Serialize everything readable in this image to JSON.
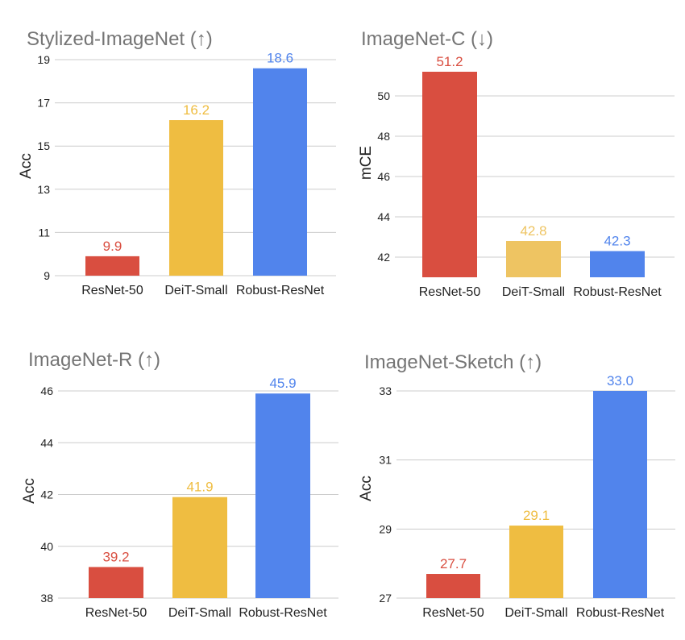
{
  "chart_data": [
    {
      "type": "bar",
      "title": "Stylized-ImageNet  (↑)",
      "ylabel": "Acc",
      "xlabel": "",
      "categories": [
        "ResNet-50",
        "DeiT-Small",
        "Robust-ResNet"
      ],
      "values": [
        9.9,
        16.2,
        18.6
      ],
      "value_labels": [
        "9.9",
        "16.2",
        "18.6"
      ],
      "colors": [
        "#d94e40",
        "#efbd41",
        "#5184ec"
      ],
      "ylim": [
        9,
        19
      ],
      "yticks": [
        9,
        11,
        13,
        15,
        17,
        19
      ],
      "ytick_labels": [
        "9",
        "11",
        "13",
        "15",
        "17",
        "19"
      ],
      "grid": true
    },
    {
      "type": "bar",
      "title": "ImageNet-C (↓)",
      "ylabel": "mCE",
      "xlabel": "",
      "categories": [
        "ResNet-50",
        "DeiT-Small",
        "Robust-ResNet"
      ],
      "values": [
        51.2,
        42.8,
        42.3
      ],
      "value_labels": [
        "51.2",
        "42.8",
        "42.3"
      ],
      "colors": [
        "#d94e40",
        "#eec462",
        "#5184ec"
      ],
      "ylim": [
        41,
        52
      ],
      "yticks": [
        42,
        44,
        46,
        48,
        50
      ],
      "ytick_labels": [
        "42",
        "44",
        "46",
        "48",
        "50"
      ],
      "grid": true
    },
    {
      "type": "bar",
      "title": "ImageNet-R (↑)",
      "ylabel": "Acc",
      "xlabel": "",
      "categories": [
        "ResNet-50",
        "DeiT-Small",
        "Robust-ResNet"
      ],
      "values": [
        39.2,
        41.9,
        45.9
      ],
      "value_labels": [
        "39.2",
        "41.9",
        "45.9"
      ],
      "colors": [
        "#d94e40",
        "#efbd41",
        "#5184ec"
      ],
      "ylim": [
        38,
        46
      ],
      "yticks": [
        38,
        40,
        42,
        44,
        46
      ],
      "ytick_labels": [
        "38",
        "40",
        "42",
        "44",
        "46"
      ],
      "grid": true
    },
    {
      "type": "bar",
      "title": "ImageNet-Sketch (↑)",
      "ylabel": "Acc",
      "xlabel": "",
      "categories": [
        "ResNet-50",
        "DeiT-Small",
        "Robust-ResNet"
      ],
      "values": [
        27.7,
        29.1,
        33.0
      ],
      "value_labels": [
        "27.7",
        "29.1",
        "33.0"
      ],
      "colors": [
        "#d94e40",
        "#efbd41",
        "#5184ec"
      ],
      "ylim": [
        27,
        33
      ],
      "yticks": [
        27,
        29,
        31,
        33
      ],
      "ytick_labels": [
        "27",
        "29",
        "31",
        "33"
      ],
      "grid": true
    }
  ]
}
